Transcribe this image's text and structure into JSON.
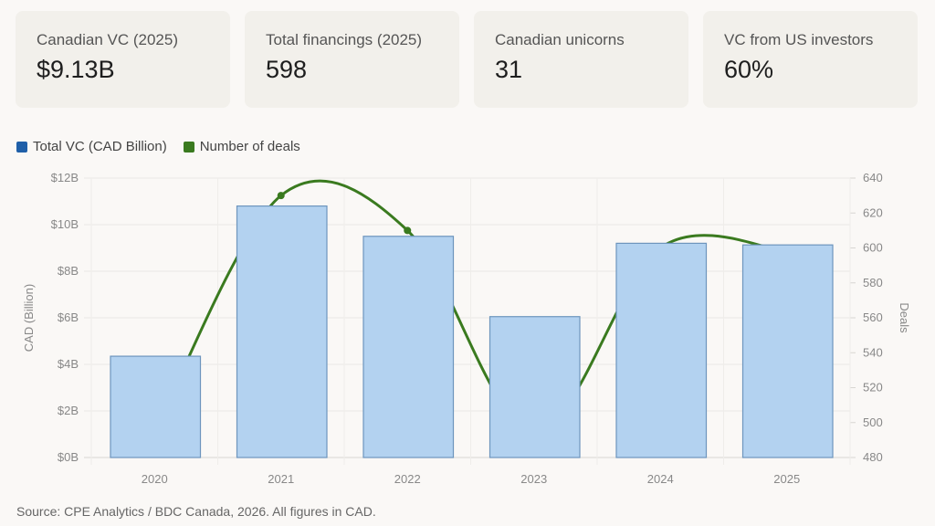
{
  "cards": [
    {
      "label": "Canadian VC (2025)",
      "value": "$9.13B"
    },
    {
      "label": "Total financings (2025)",
      "value": "598"
    },
    {
      "label": "Canadian unicorns",
      "value": "31"
    },
    {
      "label": "VC from US investors",
      "value": "60%"
    }
  ],
  "source": "Source: CPE Analytics / BDC Canada, 2026. All figures in CAD.",
  "chart_data": {
    "type": "bar+line",
    "categories": [
      "2020",
      "2021",
      "2022",
      "2023",
      "2024",
      "2025"
    ],
    "series": [
      {
        "name": "Total VC (CAD Billion)",
        "type": "bar",
        "axis": "left",
        "color": "#1f5fa8",
        "fill": "#b3d2f0",
        "values": [
          4.35,
          10.8,
          9.5,
          6.05,
          9.2,
          9.13
        ]
      },
      {
        "name": "Number of deals",
        "type": "line",
        "axis": "right",
        "color": "#3a7a1f",
        "values": [
          495,
          630,
          610,
          495,
          600,
          598
        ]
      }
    ],
    "y_left": {
      "label": "CAD (Billion)",
      "range": [
        0,
        12
      ],
      "ticks": [
        "$0B",
        "$2B",
        "$4B",
        "$6B",
        "$8B",
        "$10B",
        "$12B"
      ]
    },
    "y_right": {
      "label": "Deals",
      "range": [
        480,
        640
      ],
      "ticks": [
        "480",
        "500",
        "520",
        "540",
        "560",
        "580",
        "600",
        "620",
        "640"
      ]
    },
    "grid": true,
    "legend": "top-left"
  }
}
